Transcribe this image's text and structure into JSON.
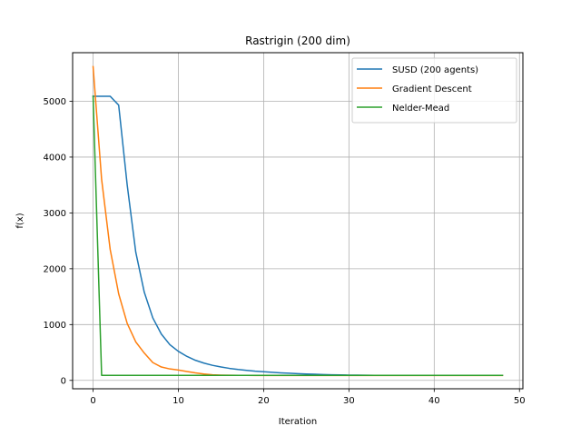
{
  "chart_data": {
    "type": "line",
    "title": "Rastrigin (200 dim)",
    "xlabel": "Iteration",
    "ylabel": "f(x)",
    "xlim": [
      -2.4,
      50.4
    ],
    "ylim": [
      -150,
      5870
    ],
    "xticks": [
      0,
      10,
      20,
      30,
      40,
      50
    ],
    "yticks": [
      0,
      1000,
      2000,
      3000,
      4000,
      5000
    ],
    "grid": true,
    "legend_position": "top-right",
    "series": [
      {
        "name": "SUSD (200 agents)",
        "color": "#1f77b4",
        "x": [
          0,
          1,
          2,
          3,
          4,
          5,
          6,
          7,
          8,
          9,
          10,
          11,
          12,
          13,
          14,
          15,
          16,
          17,
          18,
          19,
          20,
          21,
          22,
          23,
          24,
          25,
          26,
          27,
          28,
          29,
          30,
          31,
          32,
          33,
          34,
          35,
          36,
          37,
          38,
          39,
          40,
          41,
          42,
          43,
          44,
          45,
          46,
          47,
          48
        ],
        "y": [
          5090,
          5090,
          5090,
          4930,
          3500,
          2300,
          1580,
          1120,
          830,
          640,
          520,
          430,
          360,
          310,
          270,
          240,
          215,
          195,
          180,
          165,
          155,
          145,
          135,
          128,
          120,
          115,
          110,
          105,
          100,
          98,
          95,
          94,
          92,
          91,
          90,
          90,
          90,
          90,
          90,
          90,
          90,
          90,
          90,
          90,
          90,
          90,
          90,
          90,
          90
        ]
      },
      {
        "name": "Gradient Descent",
        "color": "#ff7f0e",
        "x": [
          0,
          1,
          2,
          3,
          4,
          5,
          6,
          7,
          8,
          9,
          10,
          11,
          12,
          13,
          14,
          15,
          16,
          17,
          18,
          19,
          20,
          21,
          22,
          23,
          24,
          25,
          26,
          27,
          28,
          29,
          30,
          31,
          32,
          33,
          34,
          35,
          36,
          37,
          38,
          39,
          40,
          41,
          42,
          43,
          44,
          45,
          46,
          47,
          48
        ],
        "y": [
          5620,
          3600,
          2350,
          1550,
          1020,
          690,
          490,
          320,
          240,
          205,
          185,
          160,
          135,
          115,
          100,
          95,
          92,
          90,
          89,
          88,
          88,
          88,
          88,
          88,
          88,
          88,
          88,
          88,
          88,
          88,
          88,
          88,
          88,
          88,
          88,
          88,
          88,
          88,
          88,
          88,
          88,
          88,
          88,
          88,
          88,
          88,
          88,
          88,
          88
        ]
      },
      {
        "name": "Nelder-Mead",
        "color": "#2ca02c",
        "x": [
          0,
          1,
          2,
          3,
          4,
          5,
          6,
          7,
          8,
          9,
          10,
          11,
          12,
          13,
          14,
          15,
          16,
          17,
          18,
          19,
          20,
          21,
          22,
          23,
          24,
          25,
          26,
          27,
          28,
          29,
          30,
          31,
          32,
          33,
          34,
          35,
          36,
          37,
          38,
          39,
          40,
          41,
          42,
          43,
          44,
          45,
          46,
          47,
          48
        ],
        "y": [
          5090,
          90,
          90,
          90,
          90,
          90,
          90,
          90,
          90,
          90,
          90,
          90,
          90,
          90,
          90,
          90,
          90,
          90,
          90,
          90,
          90,
          90,
          90,
          90,
          90,
          90,
          90,
          90,
          90,
          90,
          90,
          90,
          90,
          90,
          90,
          90,
          90,
          90,
          90,
          90,
          90,
          90,
          90,
          90,
          90,
          90,
          90,
          90,
          90
        ]
      }
    ]
  }
}
